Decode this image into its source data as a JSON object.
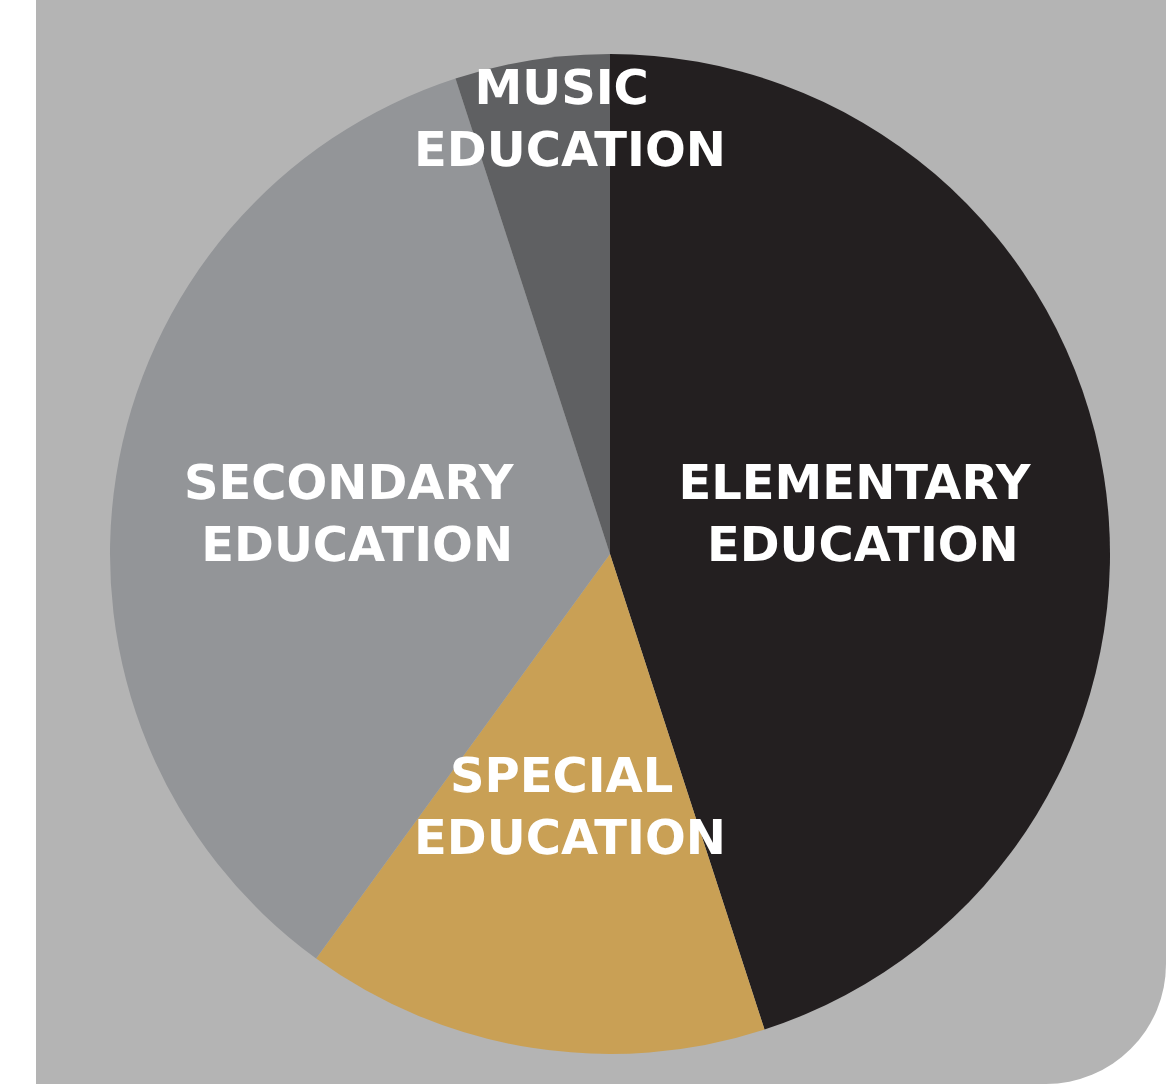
{
  "chart_data": {
    "type": "pie",
    "categories": [
      "ELEMENTARY EDUCATION",
      "SPECIAL EDUCATION",
      "SECONDARY EDUCATION",
      "MUSIC EDUCATION"
    ],
    "values": [
      45,
      15,
      35,
      5
    ],
    "colors": [
      "#231f20",
      "#c9a055",
      "#939598",
      "#5f6062"
    ],
    "legend": false
  }
}
